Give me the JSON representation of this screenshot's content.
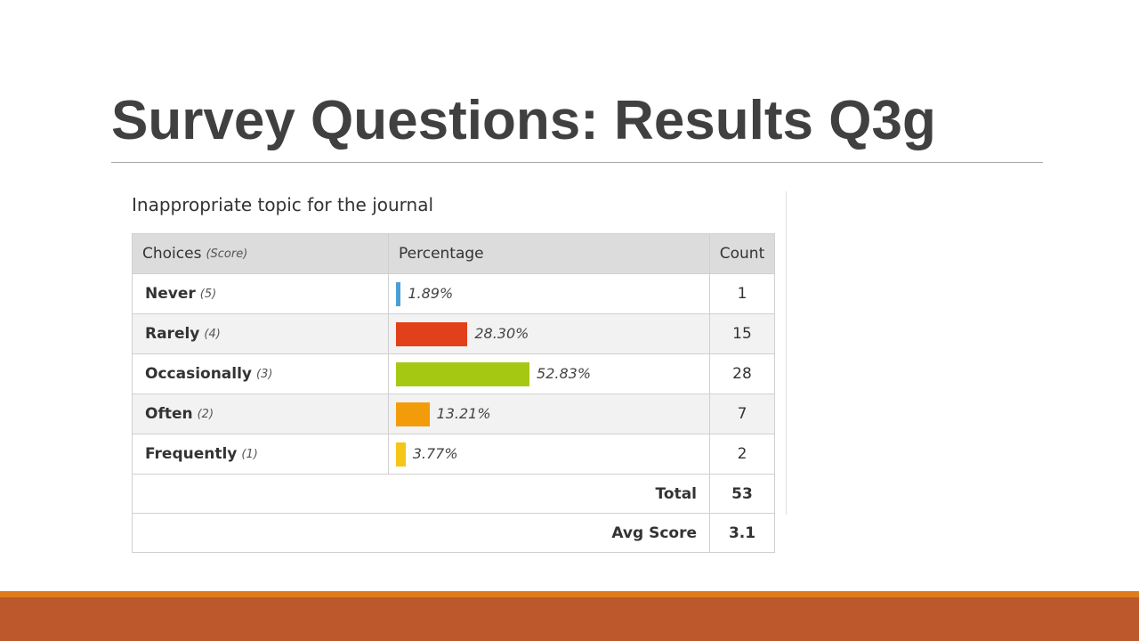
{
  "header": {
    "title": "Survey Questions: Results Q3g"
  },
  "question": "Inappropriate topic for the journal",
  "table": {
    "columns": {
      "choices": "Choices",
      "score": "(Score)",
      "percentage": "Percentage",
      "count": "Count"
    },
    "rows": [
      {
        "choice": "Never",
        "score_label": "(5)",
        "percentage": 1.89,
        "percentage_label": "1.89%",
        "count": 1,
        "color": "#4a9fd4"
      },
      {
        "choice": "Rarely",
        "score_label": "(4)",
        "percentage": 28.3,
        "percentage_label": "28.30%",
        "count": 15,
        "color": "#e2401a"
      },
      {
        "choice": "Occasionally",
        "score_label": "(3)",
        "percentage": 52.83,
        "percentage_label": "52.83%",
        "count": 28,
        "color": "#a5c913"
      },
      {
        "choice": "Often",
        "score_label": "(2)",
        "percentage": 13.21,
        "percentage_label": "13.21%",
        "count": 7,
        "color": "#f39c0a"
      },
      {
        "choice": "Frequently",
        "score_label": "(1)",
        "percentage": 3.77,
        "percentage_label": "3.77%",
        "count": 2,
        "color": "#f5c518"
      }
    ],
    "total": {
      "label": "Total",
      "value": 53
    },
    "avg_score": {
      "label": "Avg Score",
      "value": 3.1
    }
  }
}
